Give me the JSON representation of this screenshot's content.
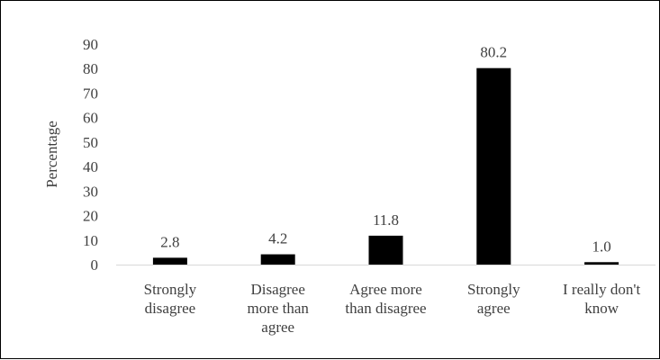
{
  "chart_data": {
    "type": "bar",
    "categories": [
      [
        "Strongly",
        "disagree"
      ],
      [
        "Disagree",
        "more than",
        "agree"
      ],
      [
        "Agree more",
        "than disagree"
      ],
      [
        "Strongly",
        "agree"
      ],
      [
        "I really don't",
        "know"
      ]
    ],
    "values": [
      2.8,
      4.2,
      11.8,
      80.2,
      1.0
    ],
    "data_labels": [
      "2.8",
      "4.2",
      "11.8",
      "80.2",
      "1.0"
    ],
    "title": "",
    "xlabel": "",
    "ylabel": "Percentage",
    "ylim": [
      0,
      90
    ],
    "y_ticks": [
      "0",
      "10",
      "20",
      "30",
      "40",
      "50",
      "60",
      "70",
      "80",
      "90"
    ],
    "grid": false,
    "legend": "none",
    "bar_color": "#000000",
    "axis_color": "#d9d9d9"
  }
}
